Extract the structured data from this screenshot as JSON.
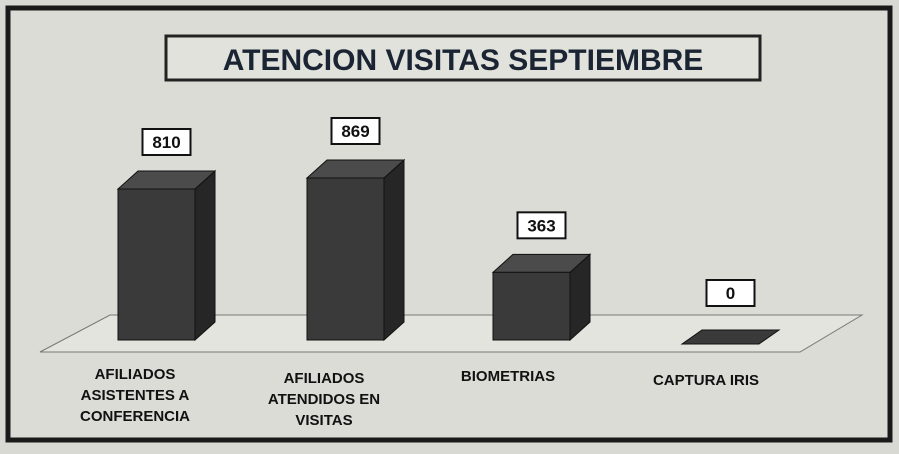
{
  "chart_data": {
    "type": "bar3d",
    "title": "ATENCION VISITAS SEPTIEMBRE",
    "categories": [
      "AFILIADOS ASISTENTES A CONFERENCIA",
      "AFILIADOS ATENDIDOS EN VISITAS",
      "BIOMETRIAS",
      "CAPTURA IRIS"
    ],
    "values": [
      810,
      869,
      363,
      0
    ],
    "color": "#3a3a3a"
  }
}
